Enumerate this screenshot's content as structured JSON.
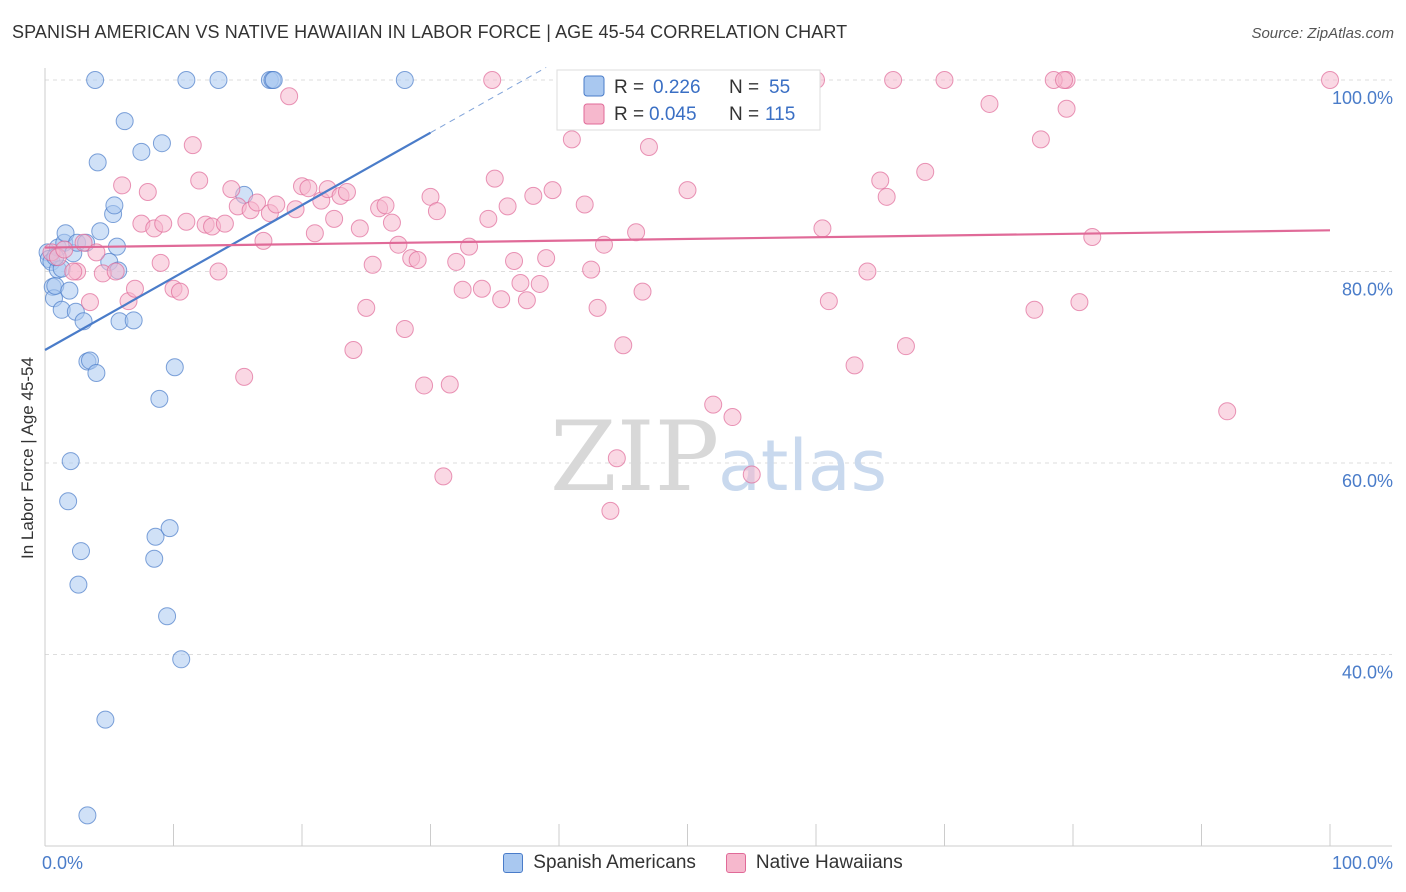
{
  "title": "SPANISH AMERICAN VS NATIVE HAWAIIAN IN LABOR FORCE | AGE 45-54 CORRELATION CHART",
  "source": "Source: ZipAtlas.com",
  "watermark": {
    "zip": "ZIP",
    "atlas": "atlas"
  },
  "colors": {
    "blue": "#4a7cc9",
    "blue_fill": "#a9c8f0",
    "pink": "#e06a98",
    "pink_fill": "#f6b8cd"
  },
  "legend": {
    "r_label": "R =",
    "n_label": "N =",
    "series": [
      {
        "r": "0.226",
        "n": "55"
      },
      {
        "r": "0.045",
        "n": "115"
      }
    ]
  },
  "chart_data": {
    "type": "scatter",
    "title": "SPANISH AMERICAN VS NATIVE HAWAIIAN IN LABOR FORCE | AGE 45-54 CORRELATION CHART",
    "xlabel": "",
    "ylabel": "In Labor Force | Age 45-54",
    "xlim": [
      0,
      100
    ],
    "ylim": [
      20,
      100
    ],
    "x_tick_labels": [
      "0.0%",
      "100.0%"
    ],
    "y_tick_labels": [
      "100.0%",
      "80.0%",
      "60.0%",
      "40.0%"
    ],
    "y_ticks": [
      100,
      80,
      60,
      40
    ],
    "grid": true,
    "series": [
      {
        "name": "Spanish Americans",
        "color": "blue",
        "trend": {
          "x0": 0,
          "y0": 71.8,
          "x1": 30,
          "y1": 94.5,
          "dash_to_x": 39
        },
        "points": [
          [
            0.2,
            82.0
          ],
          [
            0.3,
            81.3
          ],
          [
            0.5,
            81.0
          ],
          [
            0.6,
            78.4
          ],
          [
            0.7,
            77.2
          ],
          [
            0.8,
            78.5
          ],
          [
            1.0,
            82.5
          ],
          [
            1.0,
            80.2
          ],
          [
            1.3,
            80.3
          ],
          [
            1.3,
            76.0
          ],
          [
            1.5,
            83.0
          ],
          [
            1.6,
            84.0
          ],
          [
            1.8,
            56.0
          ],
          [
            1.9,
            78.0
          ],
          [
            2.0,
            60.2
          ],
          [
            2.2,
            81.9
          ],
          [
            2.4,
            75.8
          ],
          [
            2.5,
            83.0
          ],
          [
            2.6,
            47.3
          ],
          [
            2.8,
            50.8
          ],
          [
            3.0,
            74.8
          ],
          [
            3.2,
            83.0
          ],
          [
            3.3,
            70.6
          ],
          [
            3.5,
            70.7
          ],
          [
            3.9,
            100.0
          ],
          [
            4.0,
            69.4
          ],
          [
            4.1,
            91.4
          ],
          [
            4.3,
            84.2
          ],
          [
            4.7,
            33.2
          ],
          [
            5.0,
            81.0
          ],
          [
            5.3,
            86.0
          ],
          [
            5.4,
            86.9
          ],
          [
            5.6,
            82.6
          ],
          [
            5.7,
            80.1
          ],
          [
            5.8,
            74.8
          ],
          [
            6.2,
            95.7
          ],
          [
            6.9,
            74.9
          ],
          [
            7.5,
            92.5
          ],
          [
            8.5,
            50.0
          ],
          [
            8.6,
            52.3
          ],
          [
            8.9,
            66.7
          ],
          [
            9.1,
            93.4
          ],
          [
            9.5,
            44.0
          ],
          [
            9.7,
            53.2
          ],
          [
            10.1,
            70.0
          ],
          [
            10.6,
            39.5
          ],
          [
            11.0,
            100.0
          ],
          [
            13.5,
            100.0
          ],
          [
            15.5,
            88.0
          ],
          [
            17.5,
            100.0
          ],
          [
            17.7,
            100.0
          ],
          [
            17.8,
            100.0
          ],
          [
            28.0,
            100.0
          ],
          [
            3.3,
            23.2
          ],
          [
            0.8,
            81.5
          ]
        ]
      },
      {
        "name": "Native Hawaiians",
        "color": "pink",
        "trend": {
          "x0": 0,
          "y0": 82.5,
          "x1": 100,
          "y1": 84.3
        },
        "points": [
          [
            0.5,
            82.0
          ],
          [
            1.0,
            81.5
          ],
          [
            1.5,
            82.3
          ],
          [
            2.5,
            80.0
          ],
          [
            3.0,
            83.0
          ],
          [
            3.5,
            76.8
          ],
          [
            4.0,
            82.0
          ],
          [
            4.5,
            79.8
          ],
          [
            5.5,
            80.0
          ],
          [
            6.0,
            89.0
          ],
          [
            6.5,
            76.9
          ],
          [
            7.0,
            78.2
          ],
          [
            7.5,
            85.0
          ],
          [
            8.0,
            88.3
          ],
          [
            8.5,
            84.5
          ],
          [
            9.0,
            80.9
          ],
          [
            9.2,
            85.0
          ],
          [
            10.0,
            78.2
          ],
          [
            10.5,
            77.9
          ],
          [
            11.0,
            85.2
          ],
          [
            11.5,
            93.2
          ],
          [
            12.0,
            89.5
          ],
          [
            12.5,
            84.9
          ],
          [
            13.0,
            84.7
          ],
          [
            13.5,
            80.0
          ],
          [
            14.0,
            85.0
          ],
          [
            14.5,
            88.6
          ],
          [
            15.0,
            86.8
          ],
          [
            15.5,
            69.0
          ],
          [
            16.0,
            86.4
          ],
          [
            16.5,
            87.2
          ],
          [
            17.0,
            83.2
          ],
          [
            17.5,
            86.1
          ],
          [
            18.0,
            87.0
          ],
          [
            19.0,
            98.3
          ],
          [
            19.5,
            86.5
          ],
          [
            20.0,
            88.9
          ],
          [
            20.5,
            88.7
          ],
          [
            21.0,
            84.0
          ],
          [
            21.5,
            87.4
          ],
          [
            22.0,
            88.6
          ],
          [
            22.5,
            85.5
          ],
          [
            23.0,
            87.9
          ],
          [
            23.5,
            88.3
          ],
          [
            24.0,
            71.8
          ],
          [
            24.5,
            84.5
          ],
          [
            25.0,
            76.2
          ],
          [
            25.5,
            80.7
          ],
          [
            26.0,
            86.6
          ],
          [
            26.5,
            86.9
          ],
          [
            27.0,
            85.1
          ],
          [
            27.5,
            82.8
          ],
          [
            28.0,
            74.0
          ],
          [
            28.5,
            81.4
          ],
          [
            29.0,
            81.2
          ],
          [
            29.5,
            68.1
          ],
          [
            30.0,
            87.8
          ],
          [
            30.5,
            86.3
          ],
          [
            31.0,
            58.6
          ],
          [
            31.5,
            68.2
          ],
          [
            32.0,
            81.0
          ],
          [
            32.5,
            78.1
          ],
          [
            33.0,
            82.6
          ],
          [
            34.0,
            78.2
          ],
          [
            34.5,
            85.5
          ],
          [
            35.0,
            89.7
          ],
          [
            35.5,
            77.1
          ],
          [
            36.0,
            86.8
          ],
          [
            36.5,
            81.1
          ],
          [
            37.0,
            78.8
          ],
          [
            37.5,
            77.0
          ],
          [
            38.0,
            87.9
          ],
          [
            38.5,
            78.7
          ],
          [
            39.0,
            81.4
          ],
          [
            39.5,
            88.5
          ],
          [
            41.0,
            93.8
          ],
          [
            42.0,
            87.0
          ],
          [
            42.5,
            80.2
          ],
          [
            43.0,
            76.2
          ],
          [
            43.5,
            82.8
          ],
          [
            44.0,
            55.0
          ],
          [
            44.5,
            60.5
          ],
          [
            45.0,
            72.3
          ],
          [
            46.0,
            84.1
          ],
          [
            46.5,
            77.9
          ],
          [
            47.0,
            93.0
          ],
          [
            50.0,
            88.5
          ],
          [
            52.0,
            66.1
          ],
          [
            53.5,
            64.8
          ],
          [
            55.0,
            58.8
          ],
          [
            58.0,
            100.0
          ],
          [
            60.0,
            100.0
          ],
          [
            60.5,
            84.5
          ],
          [
            61.0,
            76.9
          ],
          [
            63.0,
            70.2
          ],
          [
            64.0,
            80.0
          ],
          [
            65.0,
            89.5
          ],
          [
            65.5,
            87.8
          ],
          [
            66.0,
            100.0
          ],
          [
            67.0,
            72.2
          ],
          [
            68.5,
            90.4
          ],
          [
            70.0,
            100.0
          ],
          [
            73.5,
            97.5
          ],
          [
            77.0,
            76.0
          ],
          [
            77.5,
            93.8
          ],
          [
            79.5,
            97.0
          ],
          [
            80.5,
            76.8
          ],
          [
            79.5,
            100.0
          ],
          [
            78.5,
            100.0
          ],
          [
            79.3,
            100.0
          ],
          [
            81.5,
            83.6
          ],
          [
            92.0,
            65.4
          ],
          [
            100.0,
            100.0
          ],
          [
            34.8,
            100.0
          ],
          [
            2.2,
            80.0
          ]
        ]
      }
    ]
  },
  "bottom_legend": [
    "Spanish Americans",
    "Native Hawaiians"
  ]
}
